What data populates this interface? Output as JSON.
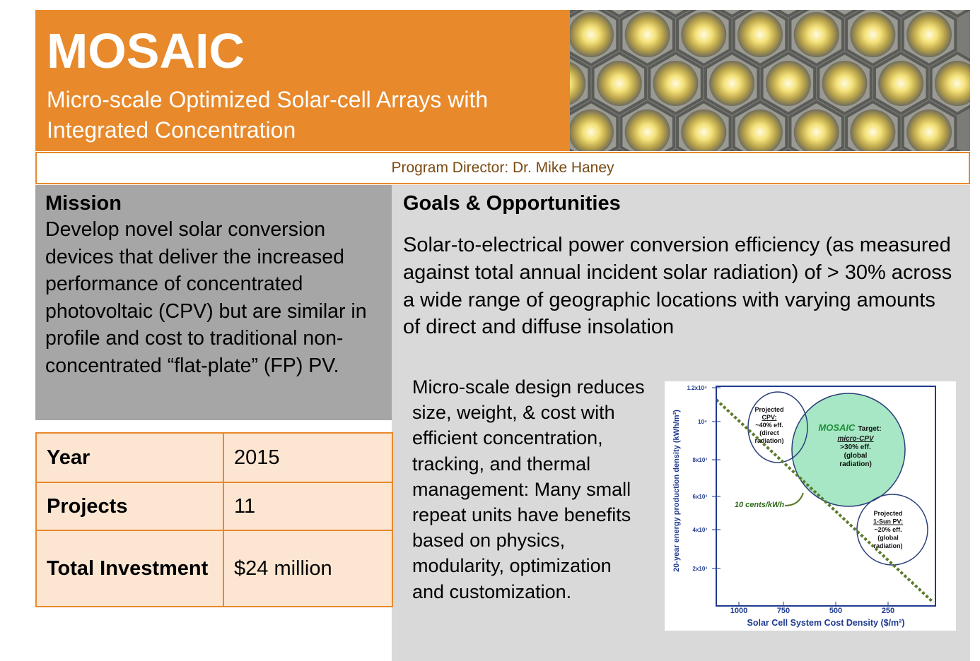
{
  "header": {
    "title": "MOSAIC",
    "subtitle": "Micro-scale Optimized Solar-cell Arrays with Integrated Concentration"
  },
  "director": "Program Director: Dr. Mike Haney",
  "mission": {
    "heading": "Mission",
    "text": "Develop novel solar conversion devices that deliver the increased performance of concentrated photovoltaic (CPV) but are similar in profile and cost to traditional non-concentrated “flat-plate” (FP) PV."
  },
  "table": {
    "rows": [
      [
        "Year",
        "2015"
      ],
      [
        "Projects",
        "11"
      ],
      [
        "Total Investment",
        "$24 million"
      ]
    ]
  },
  "goals": {
    "heading": "Goals & Opportunities",
    "text": "Solar-to-electrical power conversion efficiency (as measured against total annual incident solar radiation) of > 30% across a wide range of geographic locations with varying amounts of direct and diffuse insolation",
    "detail": "Micro-scale design reduces size, weight, & cost with efficient concentration, tracking, and thermal management: Many small repeat units have benefits based on physics, modularity, optimization and customization."
  },
  "figure": {
    "x_label": "Solar Cell System Cost Density ($/m²)",
    "y_label": "20-year energy production density (kWh/m²)",
    "x_ticks": [
      "1000",
      "750",
      "500",
      "250"
    ],
    "y_ticks": [
      "1.2x10⁴",
      "10⁴",
      "8x10³",
      "6x10³",
      "4x10³",
      "2x10³"
    ],
    "cpv": [
      "Projected",
      "CPV:",
      "~40% eff.",
      "(direct",
      "radiation)"
    ],
    "mosaic": {
      "name": "MOSAIC",
      "label": "Target:",
      "lines": [
        "micro-CPV",
        ">30% eff.",
        "(global",
        "radiation)"
      ]
    },
    "one_sun": [
      "Projected",
      "1-Sun PV:",
      "~20% eff.",
      "(global",
      "radiation)"
    ],
    "cost_line": "10 cents/kWh"
  }
}
